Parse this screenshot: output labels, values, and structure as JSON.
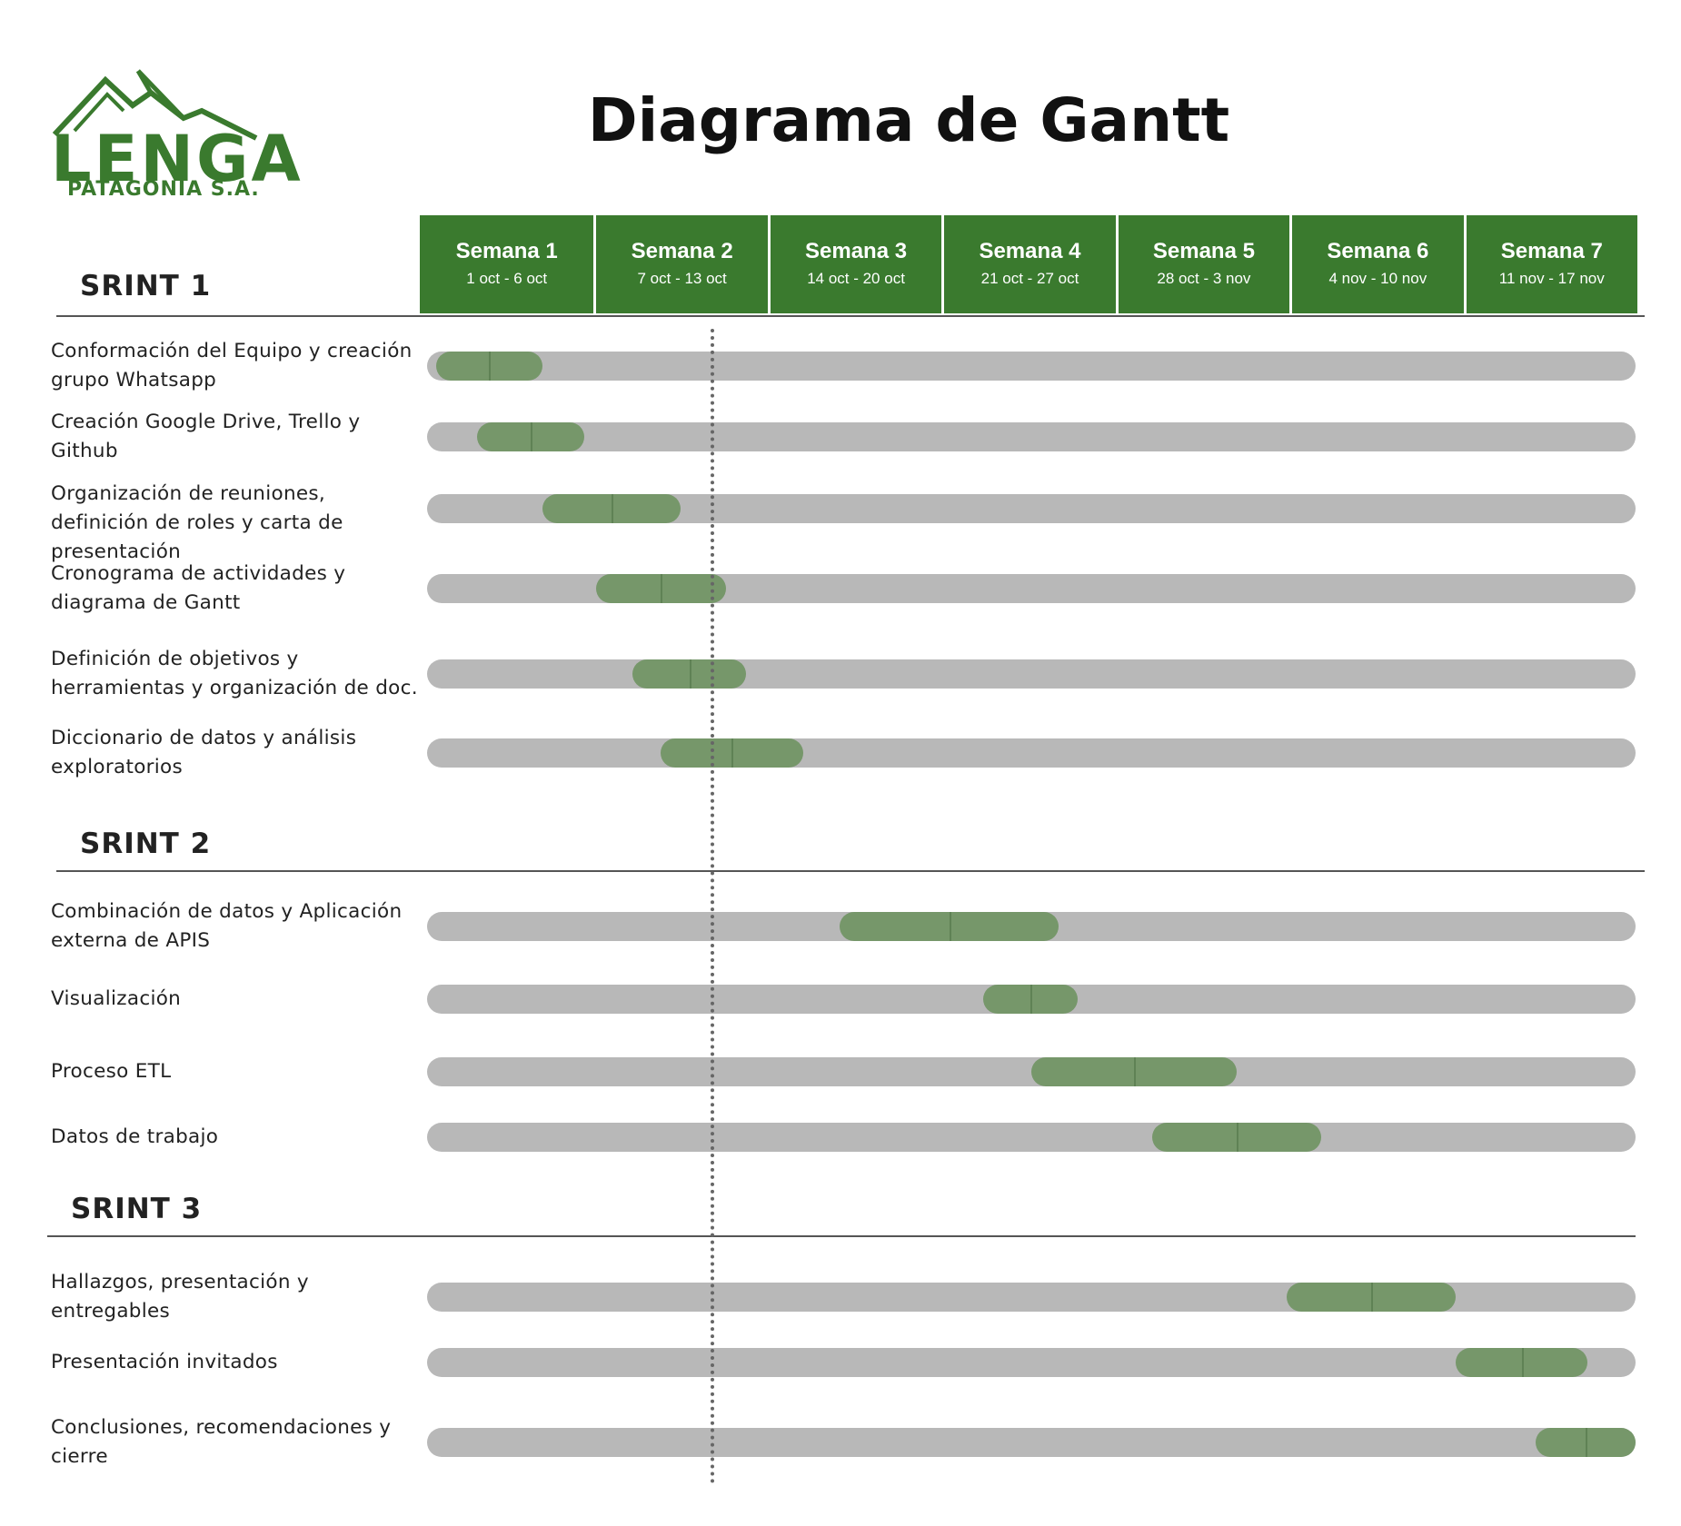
{
  "logo": {
    "name": "LENGA",
    "subtitle": "PATAGONIA S.A."
  },
  "title": "Diagrama de Gantt",
  "weeks": [
    {
      "label": "Semana 1",
      "dates": "1 oct - 6 oct"
    },
    {
      "label": "Semana 2",
      "dates": "7 oct - 13 oct"
    },
    {
      "label": "Semana 3",
      "dates": "14 oct - 20 oct"
    },
    {
      "label": "Semana 4",
      "dates": "21 oct - 27 oct"
    },
    {
      "label": "Semana 5",
      "dates": "28 oct - 3 nov"
    },
    {
      "label": "Semana 6",
      "dates": "4 nov - 10 nov"
    },
    {
      "label": "Semana 7",
      "dates": "11 nov - 17 nov"
    }
  ],
  "sprints": [
    {
      "label": "SRINT 1",
      "tasks": [
        {
          "text": "Conformación del Equipo y creación grupo Whatsapp",
          "start": 0.05,
          "end": 0.67
        },
        {
          "text": "Creación Google Drive, Trello y Github",
          "start": 0.29,
          "end": 0.91
        },
        {
          "text": "Organización de reuniones, definición de roles y carta de presentación",
          "start": 0.67,
          "end": 1.47
        },
        {
          "text": "Cronograma de actividades y diagrama de Gantt",
          "start": 0.98,
          "end": 1.73
        },
        {
          "text": "Definición de objetivos y herramientas y organización de doc.",
          "start": 1.19,
          "end": 1.85
        },
        {
          "text": "Diccionario de datos y análisis exploratorios",
          "start": 1.35,
          "end": 2.18
        }
      ]
    },
    {
      "label": "SRINT 2",
      "tasks": [
        {
          "text": "Combinación de datos y Aplicación externa de APIS",
          "start": 2.39,
          "end": 3.66
        },
        {
          "text": "Visualización",
          "start": 3.22,
          "end": 3.77
        },
        {
          "text": "Proceso ETL",
          "start": 3.5,
          "end": 4.69
        },
        {
          "text": "Datos de trabajo",
          "start": 4.2,
          "end": 5.18
        }
      ]
    },
    {
      "label": "SRINT 3",
      "tasks": [
        {
          "text": "Hallazgos, presentación y entregables",
          "start": 4.98,
          "end": 5.96
        },
        {
          "text": "Presentación invitados",
          "start": 5.96,
          "end": 6.72
        },
        {
          "text": "Conclusiones, recomendaciones y cierre",
          "start": 6.42,
          "end": 7.0
        }
      ]
    }
  ],
  "today_marker_week": 1.65,
  "colors": {
    "header": "#3a7a2e",
    "bar": "#76976a",
    "track": "#b8b8b8"
  }
}
